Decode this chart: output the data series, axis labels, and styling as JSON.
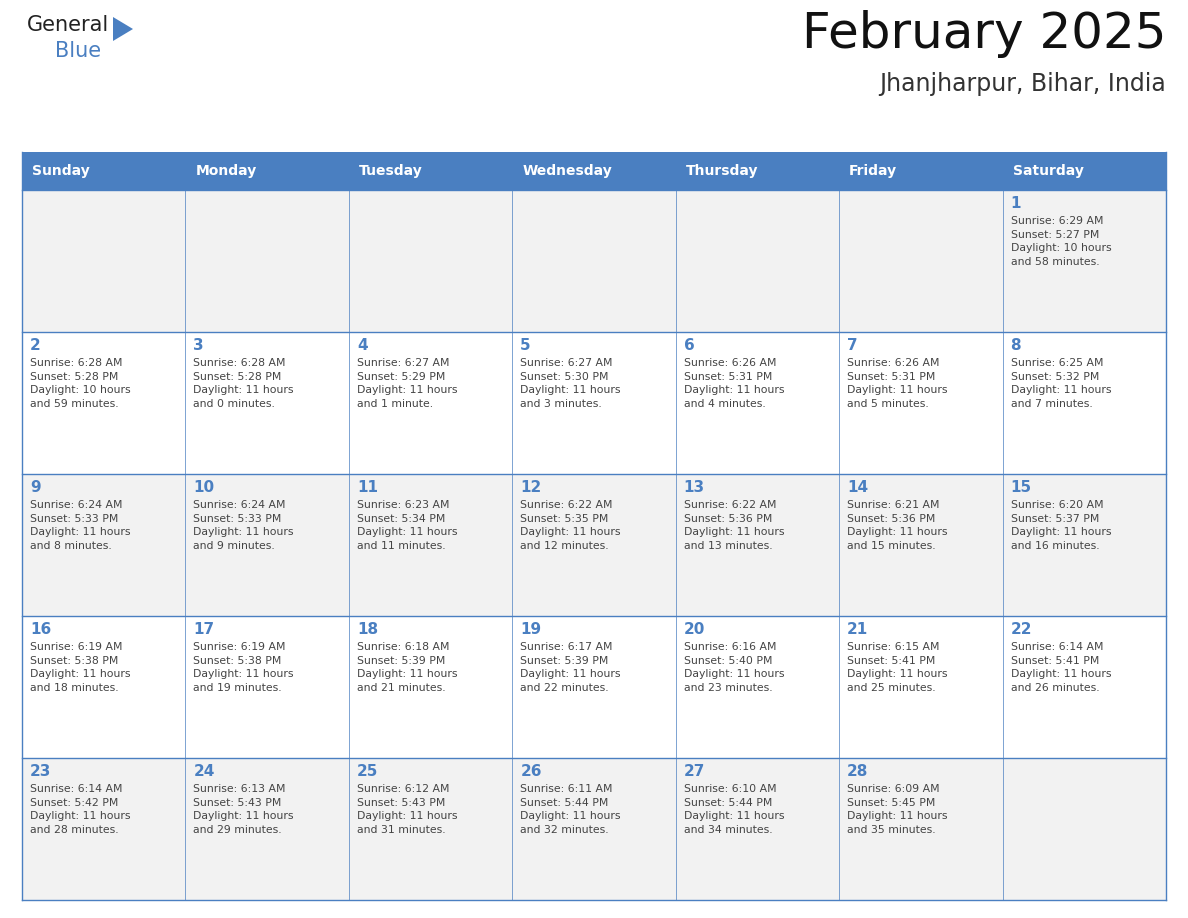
{
  "title": "February 2025",
  "subtitle": "Jhanjharpur, Bihar, India",
  "days_of_week": [
    "Sunday",
    "Monday",
    "Tuesday",
    "Wednesday",
    "Thursday",
    "Friday",
    "Saturday"
  ],
  "header_bg": "#4a7fc1",
  "header_text": "#FFFFFF",
  "row_bg_odd": "#F2F2F2",
  "row_bg_even": "#FFFFFF",
  "cell_border_color": "#4a7fc1",
  "day_num_color": "#4a7fc1",
  "info_text_color": "#444444",
  "title_color": "#111111",
  "subtitle_color": "#333333",
  "logo_dark_color": "#222222",
  "logo_blue_color": "#4a7fc1",
  "bg_color": "#FFFFFF",
  "calendar_data": [
    [
      null,
      null,
      null,
      null,
      null,
      null,
      {
        "day": "1",
        "sunrise": "6:29 AM",
        "sunset": "5:27 PM",
        "daylight": "10 hours\nand 58 minutes."
      }
    ],
    [
      {
        "day": "2",
        "sunrise": "6:28 AM",
        "sunset": "5:28 PM",
        "daylight": "10 hours\nand 59 minutes."
      },
      {
        "day": "3",
        "sunrise": "6:28 AM",
        "sunset": "5:28 PM",
        "daylight": "11 hours\nand 0 minutes."
      },
      {
        "day": "4",
        "sunrise": "6:27 AM",
        "sunset": "5:29 PM",
        "daylight": "11 hours\nand 1 minute."
      },
      {
        "day": "5",
        "sunrise": "6:27 AM",
        "sunset": "5:30 PM",
        "daylight": "11 hours\nand 3 minutes."
      },
      {
        "day": "6",
        "sunrise": "6:26 AM",
        "sunset": "5:31 PM",
        "daylight": "11 hours\nand 4 minutes."
      },
      {
        "day": "7",
        "sunrise": "6:26 AM",
        "sunset": "5:31 PM",
        "daylight": "11 hours\nand 5 minutes."
      },
      {
        "day": "8",
        "sunrise": "6:25 AM",
        "sunset": "5:32 PM",
        "daylight": "11 hours\nand 7 minutes."
      }
    ],
    [
      {
        "day": "9",
        "sunrise": "6:24 AM",
        "sunset": "5:33 PM",
        "daylight": "11 hours\nand 8 minutes."
      },
      {
        "day": "10",
        "sunrise": "6:24 AM",
        "sunset": "5:33 PM",
        "daylight": "11 hours\nand 9 minutes."
      },
      {
        "day": "11",
        "sunrise": "6:23 AM",
        "sunset": "5:34 PM",
        "daylight": "11 hours\nand 11 minutes."
      },
      {
        "day": "12",
        "sunrise": "6:22 AM",
        "sunset": "5:35 PM",
        "daylight": "11 hours\nand 12 minutes."
      },
      {
        "day": "13",
        "sunrise": "6:22 AM",
        "sunset": "5:36 PM",
        "daylight": "11 hours\nand 13 minutes."
      },
      {
        "day": "14",
        "sunrise": "6:21 AM",
        "sunset": "5:36 PM",
        "daylight": "11 hours\nand 15 minutes."
      },
      {
        "day": "15",
        "sunrise": "6:20 AM",
        "sunset": "5:37 PM",
        "daylight": "11 hours\nand 16 minutes."
      }
    ],
    [
      {
        "day": "16",
        "sunrise": "6:19 AM",
        "sunset": "5:38 PM",
        "daylight": "11 hours\nand 18 minutes."
      },
      {
        "day": "17",
        "sunrise": "6:19 AM",
        "sunset": "5:38 PM",
        "daylight": "11 hours\nand 19 minutes."
      },
      {
        "day": "18",
        "sunrise": "6:18 AM",
        "sunset": "5:39 PM",
        "daylight": "11 hours\nand 21 minutes."
      },
      {
        "day": "19",
        "sunrise": "6:17 AM",
        "sunset": "5:39 PM",
        "daylight": "11 hours\nand 22 minutes."
      },
      {
        "day": "20",
        "sunrise": "6:16 AM",
        "sunset": "5:40 PM",
        "daylight": "11 hours\nand 23 minutes."
      },
      {
        "day": "21",
        "sunrise": "6:15 AM",
        "sunset": "5:41 PM",
        "daylight": "11 hours\nand 25 minutes."
      },
      {
        "day": "22",
        "sunrise": "6:14 AM",
        "sunset": "5:41 PM",
        "daylight": "11 hours\nand 26 minutes."
      }
    ],
    [
      {
        "day": "23",
        "sunrise": "6:14 AM",
        "sunset": "5:42 PM",
        "daylight": "11 hours\nand 28 minutes."
      },
      {
        "day": "24",
        "sunrise": "6:13 AM",
        "sunset": "5:43 PM",
        "daylight": "11 hours\nand 29 minutes."
      },
      {
        "day": "25",
        "sunrise": "6:12 AM",
        "sunset": "5:43 PM",
        "daylight": "11 hours\nand 31 minutes."
      },
      {
        "day": "26",
        "sunrise": "6:11 AM",
        "sunset": "5:44 PM",
        "daylight": "11 hours\nand 32 minutes."
      },
      {
        "day": "27",
        "sunrise": "6:10 AM",
        "sunset": "5:44 PM",
        "daylight": "11 hours\nand 34 minutes."
      },
      {
        "day": "28",
        "sunrise": "6:09 AM",
        "sunset": "5:45 PM",
        "daylight": "11 hours\nand 35 minutes."
      },
      null
    ]
  ]
}
